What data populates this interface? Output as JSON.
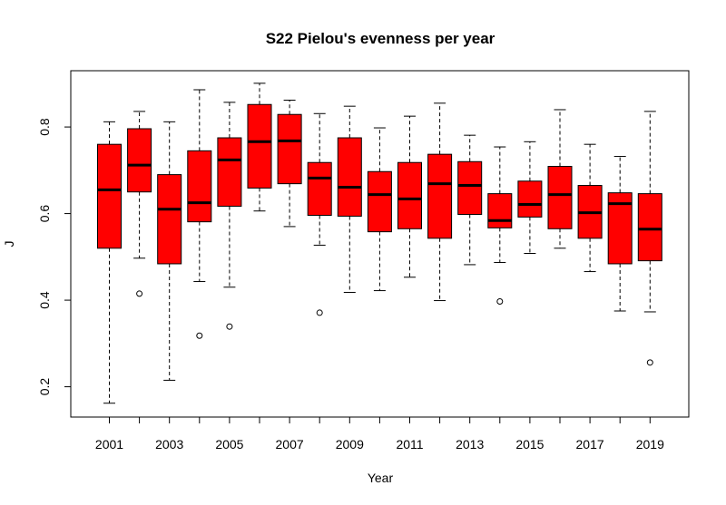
{
  "chart_data": {
    "type": "boxplot",
    "title": "S22 Pielou's evenness per year",
    "xlabel": "Year",
    "ylabel": "J",
    "ylim": [
      0.13,
      0.93
    ],
    "yticks": [
      0.2,
      0.4,
      0.6,
      0.8
    ],
    "box_color": "#ff0000",
    "categories": [
      "2001",
      "2002",
      "2003",
      "2004",
      "2005",
      "2006",
      "2007",
      "2008",
      "2009",
      "2010",
      "2011",
      "2012",
      "2013",
      "2014",
      "2015",
      "2016",
      "2017",
      "2018",
      "2019"
    ],
    "x_tick_labels": [
      "2001",
      "2003",
      "2005",
      "2007",
      "2009",
      "2011",
      "2013",
      "2015",
      "2017",
      "2019"
    ],
    "boxes": [
      {
        "year": "2001",
        "whisker_low": 0.162,
        "q1": 0.52,
        "median": 0.655,
        "q3": 0.76,
        "whisker_high": 0.812,
        "outliers": []
      },
      {
        "year": "2002",
        "whisker_low": 0.497,
        "q1": 0.65,
        "median": 0.712,
        "q3": 0.796,
        "whisker_high": 0.836,
        "outliers": [
          0.415
        ]
      },
      {
        "year": "2003",
        "whisker_low": 0.215,
        "q1": 0.484,
        "median": 0.61,
        "q3": 0.69,
        "whisker_high": 0.812,
        "outliers": []
      },
      {
        "year": "2004",
        "whisker_low": 0.443,
        "q1": 0.581,
        "median": 0.625,
        "q3": 0.745,
        "whisker_high": 0.886,
        "outliers": [
          0.318
        ]
      },
      {
        "year": "2005",
        "whisker_low": 0.43,
        "q1": 0.617,
        "median": 0.724,
        "q3": 0.775,
        "whisker_high": 0.857,
        "outliers": [
          0.339
        ]
      },
      {
        "year": "2006",
        "whisker_low": 0.606,
        "q1": 0.659,
        "median": 0.766,
        "q3": 0.852,
        "whisker_high": 0.901,
        "outliers": []
      },
      {
        "year": "2007",
        "whisker_low": 0.57,
        "q1": 0.669,
        "median": 0.768,
        "q3": 0.829,
        "whisker_high": 0.862,
        "outliers": []
      },
      {
        "year": "2008",
        "whisker_low": 0.527,
        "q1": 0.596,
        "median": 0.682,
        "q3": 0.718,
        "whisker_high": 0.831,
        "outliers": [
          0.371
        ]
      },
      {
        "year": "2009",
        "whisker_low": 0.418,
        "q1": 0.594,
        "median": 0.661,
        "q3": 0.775,
        "whisker_high": 0.848,
        "outliers": []
      },
      {
        "year": "2010",
        "whisker_low": 0.422,
        "q1": 0.558,
        "median": 0.644,
        "q3": 0.697,
        "whisker_high": 0.798,
        "outliers": []
      },
      {
        "year": "2011",
        "whisker_low": 0.453,
        "q1": 0.565,
        "median": 0.634,
        "q3": 0.718,
        "whisker_high": 0.825,
        "outliers": []
      },
      {
        "year": "2012",
        "whisker_low": 0.399,
        "q1": 0.543,
        "median": 0.669,
        "q3": 0.737,
        "whisker_high": 0.855,
        "outliers": []
      },
      {
        "year": "2013",
        "whisker_low": 0.482,
        "q1": 0.598,
        "median": 0.665,
        "q3": 0.72,
        "whisker_high": 0.781,
        "outliers": []
      },
      {
        "year": "2014",
        "whisker_low": 0.487,
        "q1": 0.567,
        "median": 0.584,
        "q3": 0.646,
        "whisker_high": 0.754,
        "outliers": [
          0.397
        ]
      },
      {
        "year": "2015",
        "whisker_low": 0.508,
        "q1": 0.592,
        "median": 0.621,
        "q3": 0.675,
        "whisker_high": 0.766,
        "outliers": []
      },
      {
        "year": "2016",
        "whisker_low": 0.52,
        "q1": 0.565,
        "median": 0.644,
        "q3": 0.709,
        "whisker_high": 0.84,
        "outliers": []
      },
      {
        "year": "2017",
        "whisker_low": 0.466,
        "q1": 0.543,
        "median": 0.602,
        "q3": 0.665,
        "whisker_high": 0.76,
        "outliers": []
      },
      {
        "year": "2018",
        "whisker_low": 0.375,
        "q1": 0.484,
        "median": 0.623,
        "q3": 0.648,
        "whisker_high": 0.732,
        "outliers": []
      },
      {
        "year": "2019",
        "whisker_low": 0.373,
        "q1": 0.491,
        "median": 0.564,
        "q3": 0.646,
        "whisker_high": 0.836,
        "outliers": [
          0.256
        ]
      }
    ]
  }
}
